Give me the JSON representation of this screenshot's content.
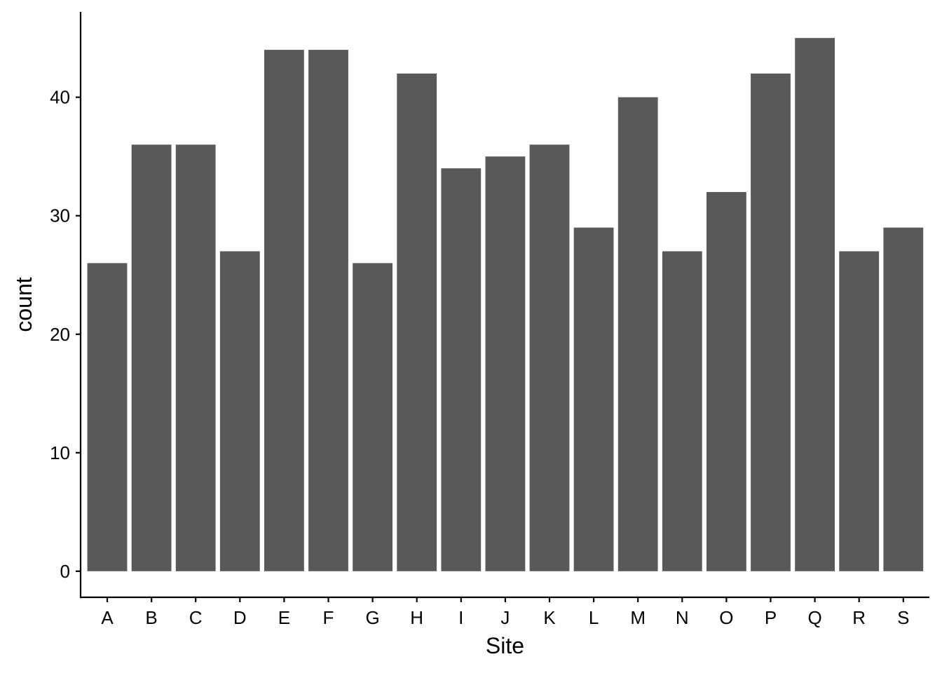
{
  "chart_data": {
    "type": "bar",
    "categories": [
      "A",
      "B",
      "C",
      "D",
      "E",
      "F",
      "G",
      "H",
      "I",
      "J",
      "K",
      "L",
      "M",
      "N",
      "O",
      "P",
      "Q",
      "R",
      "S"
    ],
    "values": [
      26,
      36,
      36,
      27,
      44,
      44,
      26,
      42,
      34,
      35,
      36,
      29,
      40,
      27,
      32,
      42,
      45,
      27,
      29
    ],
    "xlabel": "Site",
    "ylabel": "count",
    "ylim": [
      -2.2,
      47.2
    ],
    "yticks": [
      0,
      10,
      20,
      30,
      40
    ],
    "grid": false,
    "bar_color": "#595959",
    "axis_color": "#000000",
    "background": "#ffffff"
  }
}
